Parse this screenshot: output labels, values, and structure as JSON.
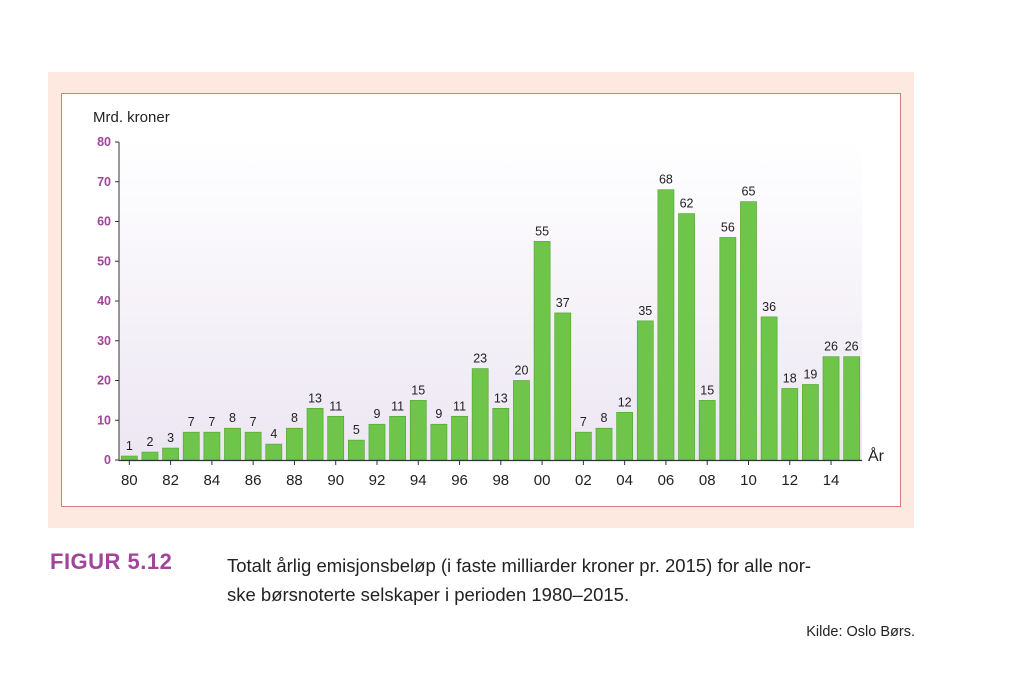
{
  "figure": {
    "label": "FIGUR 5.12",
    "caption_line1": "Totalt årlig emisjonsbeløp (i faste milliarder kroner pr. 2015) for alle nor-",
    "caption_line2": "ske børsnoterte selskaper i perioden 1980–2015.",
    "source": "Kilde: Oslo Børs."
  },
  "colors": {
    "bar": "#6fc44a",
    "bar_edge": "#4ea52e",
    "ytick": "#a0459a",
    "panel": "#fde9e0",
    "frame": "#e07a7a"
  },
  "chart_data": {
    "type": "bar",
    "title": "",
    "ylabel": "Mrd. kroner",
    "xlabel": "År",
    "ylim": [
      0,
      80
    ],
    "yticks": [
      0,
      10,
      20,
      30,
      40,
      50,
      60,
      70,
      80
    ],
    "categories": [
      "1980",
      "1981",
      "1982",
      "1983",
      "1984",
      "1985",
      "1986",
      "1987",
      "1988",
      "1989",
      "1990",
      "1991",
      "1992",
      "1993",
      "1994",
      "1995",
      "1996",
      "1997",
      "1998",
      "1999",
      "2000",
      "2001",
      "2002",
      "2003",
      "2004",
      "2005",
      "2006",
      "2007",
      "2008",
      "2009",
      "2010",
      "2011",
      "2012",
      "2013",
      "2014",
      "2015"
    ],
    "xtick_labels": [
      "80",
      "82",
      "84",
      "86",
      "88",
      "90",
      "92",
      "94",
      "96",
      "98",
      "00",
      "02",
      "04",
      "06",
      "08",
      "10",
      "12",
      "14"
    ],
    "values": [
      1,
      2,
      3,
      7,
      7,
      8,
      7,
      4,
      8,
      13,
      11,
      5,
      9,
      11,
      15,
      9,
      11,
      23,
      13,
      20,
      55,
      37,
      7,
      8,
      12,
      35,
      68,
      62,
      15,
      56,
      65,
      36,
      18,
      19,
      26,
      26
    ],
    "data_labels": [
      "1",
      "2",
      "3",
      "7",
      "7",
      "8",
      "7",
      "4",
      "8",
      "13",
      "11",
      "5",
      "9",
      "11",
      "15",
      "9",
      "11",
      "23",
      "13",
      "20",
      "55",
      "37",
      "7",
      "8",
      "12",
      "35",
      "68",
      "62",
      "15",
      "56",
      "65",
      "36",
      "18",
      "19",
      "26",
      "26"
    ],
    "grid": false,
    "legend": "none"
  }
}
